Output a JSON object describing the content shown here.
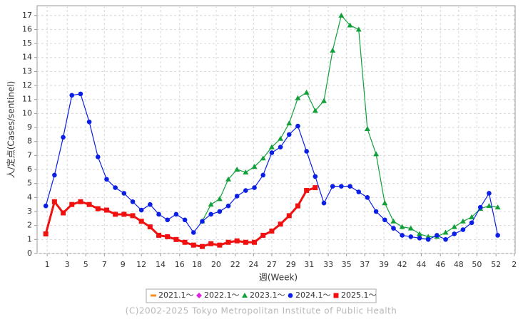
{
  "chart_data": {
    "type": "line",
    "x_label": "週(Week)",
    "y_label": "人/定点(Cases/sentinel)",
    "footer": "(C)2002-2025 Tokyo Metropolitan Institute of Public Health",
    "x": [
      1,
      2,
      3,
      4,
      5,
      6,
      7,
      8,
      9,
      10,
      11,
      12,
      13,
      14,
      15,
      16,
      17,
      18,
      19,
      20,
      21,
      22,
      23,
      24,
      25,
      26,
      27,
      28,
      29,
      30,
      31,
      32,
      33,
      34,
      35,
      36,
      37,
      38,
      39,
      40,
      41,
      42,
      43,
      44,
      45,
      46,
      47,
      48,
      49,
      50,
      51,
      52,
      53
    ],
    "xlim": [
      0,
      55
    ],
    "xticks": [
      {
        "value": 1.16,
        "label": "1"
      },
      {
        "value": 3.47,
        "label": "3"
      },
      {
        "value": 5.6,
        "label": "5"
      },
      {
        "value": 7.74,
        "label": "7"
      },
      {
        "value": 9.87,
        "label": "9"
      },
      12,
      {
        "value": 14.2,
        "label": "14"
      },
      {
        "value": 16.4,
        "label": "16"
      },
      {
        "value": 18.4,
        "label": "18"
      },
      {
        "value": 20.6,
        "label": "20"
      },
      {
        "value": 22.8,
        "label": "22"
      },
      {
        "value": 24.9,
        "label": "24"
      },
      27,
      {
        "value": 29.2,
        "label": "29"
      },
      {
        "value": 31.3,
        "label": "31"
      },
      {
        "value": 33.5,
        "label": "33"
      },
      {
        "value": 35.6,
        "label": "35"
      },
      {
        "value": 37.7,
        "label": "37"
      },
      {
        "value": 39.9,
        "label": "39"
      },
      42,
      {
        "value": 44.2,
        "label": "44"
      },
      {
        "value": 46.4,
        "label": "46"
      },
      {
        "value": 48.5,
        "label": "48"
      },
      {
        "value": 50.6,
        "label": "50"
      },
      {
        "value": 52.8,
        "label": "52"
      },
      {
        "value": 54.9,
        "label": "2"
      }
    ],
    "ylim": [
      0,
      17.7
    ],
    "yticks": [
      0,
      1,
      2,
      3,
      4,
      5,
      6,
      7,
      8,
      9,
      10,
      11,
      12,
      13,
      14,
      15,
      16,
      17
    ],
    "grid": true,
    "legend": "bottom",
    "series": [
      {
        "name": "2021.1～",
        "color": "#ff8c1a",
        "marker": "bar",
        "values": [
          null,
          null,
          null,
          null,
          null,
          null,
          null,
          null,
          null,
          null,
          null,
          null,
          null,
          null,
          null,
          null,
          null,
          null,
          null,
          null,
          null,
          null,
          null,
          null,
          null,
          null,
          null,
          null,
          null,
          null,
          null,
          null,
          null,
          null,
          null,
          null,
          null,
          null,
          null,
          null,
          null,
          null,
          null,
          null,
          null,
          null,
          null,
          null,
          null,
          null,
          null,
          null,
          null
        ]
      },
      {
        "name": "2022.1～",
        "color": "#e020e0",
        "marker": "diamond",
        "values": [
          null,
          null,
          null,
          null,
          null,
          null,
          null,
          null,
          null,
          null,
          null,
          null,
          null,
          null,
          null,
          null,
          null,
          null,
          null,
          null,
          null,
          null,
          null,
          null,
          null,
          null,
          null,
          null,
          null,
          null,
          null,
          null,
          null,
          null,
          null,
          null,
          null,
          null,
          null,
          null,
          null,
          null,
          null,
          null,
          null,
          null,
          null,
          null,
          null,
          null,
          null,
          null,
          null
        ]
      },
      {
        "name": "2023.1～",
        "color": "#11a03a",
        "marker": "triangle",
        "values": [
          null,
          null,
          null,
          null,
          null,
          null,
          null,
          null,
          null,
          null,
          null,
          null,
          null,
          null,
          null,
          null,
          null,
          null,
          2.3,
          3.5,
          3.9,
          5.3,
          6.0,
          5.8,
          6.2,
          6.8,
          7.6,
          8.2,
          9.3,
          11.1,
          11.5,
          10.2,
          10.9,
          14.5,
          17.0,
          16.3,
          16.0,
          8.9,
          7.1,
          3.6,
          2.3,
          1.9,
          1.8,
          1.4,
          1.2,
          1.2,
          1.5,
          1.9,
          2.3,
          2.6,
          3.2,
          3.4,
          3.3
        ]
      },
      {
        "name": "2024.1～",
        "color": "#0a1ee6",
        "marker": "circle",
        "values": [
          3.4,
          5.6,
          8.3,
          11.3,
          11.4,
          9.4,
          6.9,
          5.3,
          4.7,
          4.3,
          3.7,
          3.1,
          3.5,
          2.8,
          2.4,
          2.8,
          2.4,
          1.5,
          2.3,
          2.8,
          3.0,
          3.4,
          4.1,
          4.5,
          4.7,
          5.6,
          7.2,
          7.6,
          8.5,
          9.1,
          7.3,
          5.5,
          3.6,
          4.8,
          4.8,
          4.8,
          4.4,
          4.0,
          3.0,
          2.4,
          1.8,
          1.3,
          1.2,
          1.1,
          1.0,
          1.3,
          1.0,
          1.4,
          1.7,
          2.2,
          3.3,
          4.3,
          1.3
        ]
      },
      {
        "name": "2025.1～",
        "color": "#f01010",
        "marker": "square",
        "values": [
          1.4,
          3.7,
          2.9,
          3.5,
          3.7,
          3.5,
          3.2,
          3.1,
          2.8,
          2.8,
          2.7,
          2.3,
          1.9,
          1.3,
          1.2,
          1.0,
          0.8,
          0.6,
          0.5,
          0.7,
          0.6,
          0.8,
          0.9,
          0.8,
          0.8,
          1.3,
          1.6,
          2.1,
          2.7,
          3.4,
          4.5,
          4.7,
          null,
          null,
          null,
          null,
          null,
          null,
          null,
          null,
          null,
          null,
          null,
          null,
          null,
          null,
          null,
          null,
          null,
          null,
          null,
          null,
          null
        ]
      }
    ]
  }
}
